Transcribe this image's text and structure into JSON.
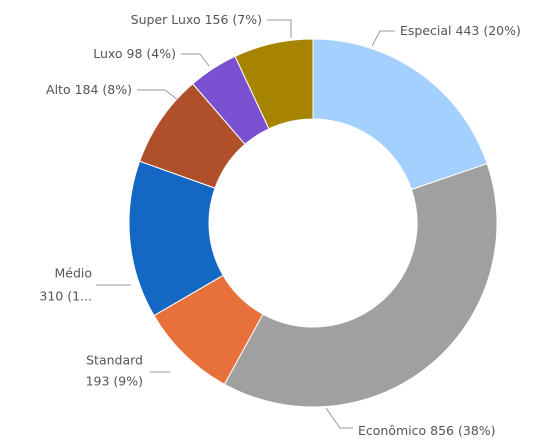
{
  "chart_data": {
    "type": "donut",
    "categories": [
      "Especial",
      "Econômico",
      "Standard",
      "Médio",
      "Alto",
      "Luxo",
      "Super Luxo"
    ],
    "values": [
      443,
      856,
      193,
      310,
      184,
      98,
      156
    ],
    "value_labels": [
      "443 (20%)",
      "856 (38%)",
      "193 (9%)",
      "310 (1...",
      "184 (8%)",
      "98 (4%)",
      "156 (7%)"
    ],
    "colors": [
      "#a3d0ff",
      "#a0a0a0",
      "#e8703a",
      "#1467c2",
      "#b0502a",
      "#7a4fd0",
      "#a68400"
    ]
  }
}
